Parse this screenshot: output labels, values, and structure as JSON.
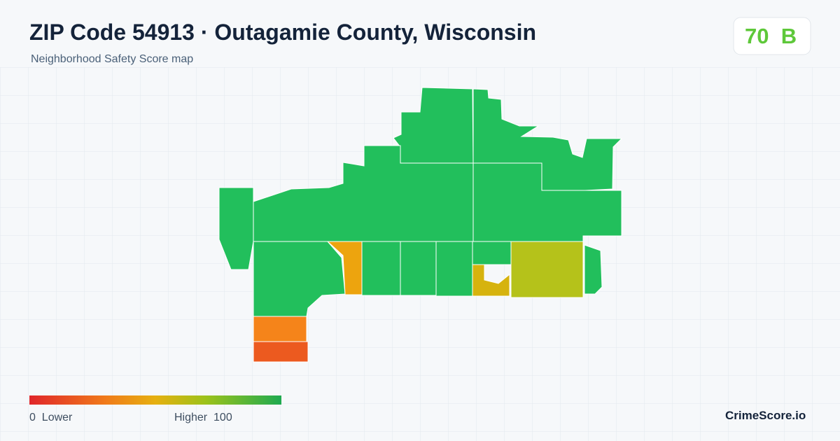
{
  "header": {
    "title": "ZIP Code 54913 · Outagamie County, Wisconsin",
    "subtitle": "Neighborhood Safety Score map"
  },
  "score": {
    "value": "70",
    "grade": "B"
  },
  "legend": {
    "min": "0",
    "min_label": "Lower",
    "max_label": "Higher",
    "max": "100"
  },
  "brand": "CrimeScore.io"
}
